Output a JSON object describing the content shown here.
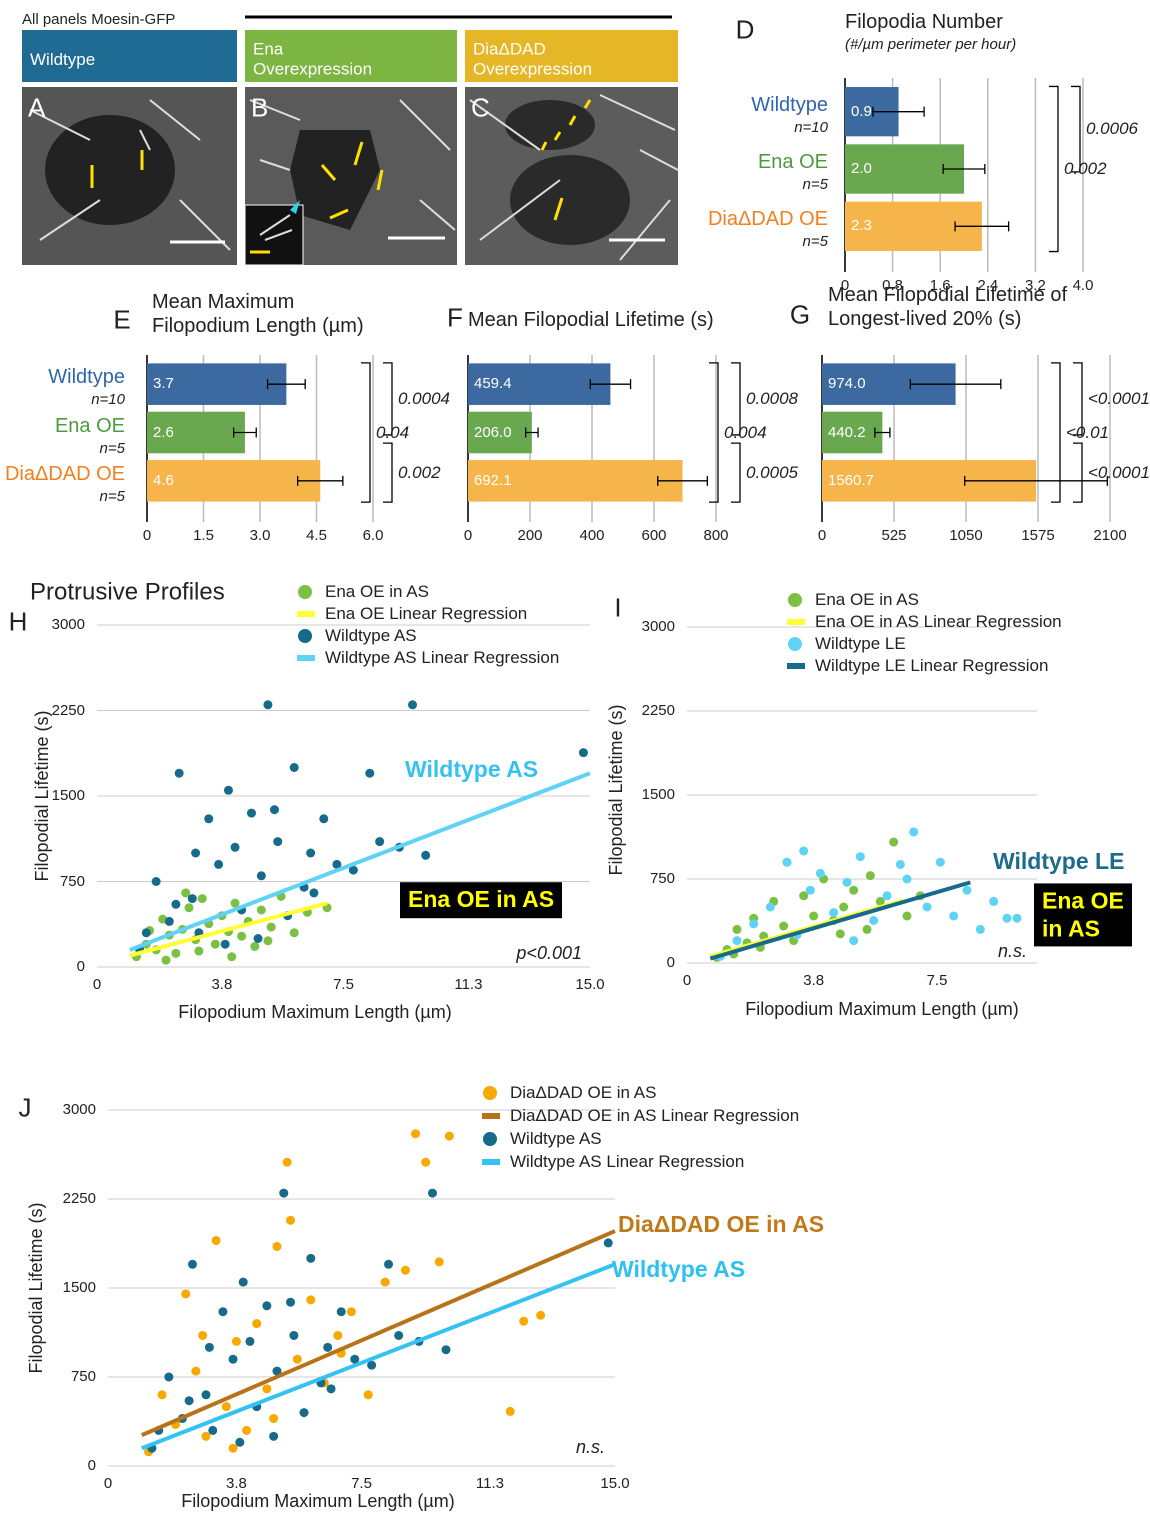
{
  "figure": {
    "heading": "All panels Moesin-GFP",
    "image_panels": [
      {
        "letter": "A",
        "title": "Wildtype",
        "color": "#1f6b93"
      },
      {
        "letter": "B",
        "title": "Ena\nOverexpression",
        "color": "#7db543"
      },
      {
        "letter": "C",
        "title": "DiaΔDAD\nOverexpression",
        "color": "#e5b625"
      }
    ]
  },
  "chart_data": [
    {
      "type": "bar",
      "letter": "D",
      "title": "Filopodia Number",
      "subtitle": "(#/µm perimeter per hour)",
      "categories": [
        "Wildtype",
        "Ena OE",
        "DiaΔDAD OE"
      ],
      "category_notes": [
        "n=10",
        "n=5",
        "n=5"
      ],
      "category_colors": [
        "#2f66ad",
        "#4f9a3c",
        "#f08020"
      ],
      "values": [
        0.9,
        2.0,
        2.3
      ],
      "value_labels": [
        "0.9",
        "2.0",
        "2.3"
      ],
      "errors": [
        0.43,
        0.35,
        0.45
      ],
      "colors": [
        "#3c6aa0",
        "#69a84f",
        "#f5b54b"
      ],
      "xlim": [
        0,
        4
      ],
      "xticks": [
        0,
        0.8,
        1.6,
        2.4,
        3.2,
        {
          "value": 4,
          "label": "4.0"
        }
      ],
      "grid": true,
      "p_values": [
        "0.0006",
        "0.002"
      ]
    },
    {
      "type": "bar",
      "letter": "E",
      "title": "Mean Maximum\nFilopodium Length (µm)",
      "categories": [
        "Wildtype",
        "Ena OE",
        "DiaΔDAD OE"
      ],
      "category_notes": [
        "n=10",
        "n=5",
        "n=5"
      ],
      "category_colors": [
        "#2f66ad",
        "#4f9a3c",
        "#f08020"
      ],
      "values": [
        3.7,
        2.6,
        4.6
      ],
      "value_labels": [
        "3.7",
        "2.6",
        "4.6"
      ],
      "errors": [
        0.5,
        0.3,
        0.6
      ],
      "colors": [
        "#3c6aa0",
        "#69a84f",
        "#f5b54b"
      ],
      "xlim": [
        0,
        6
      ],
      "xticks": [
        0,
        1.5,
        {
          "value": 3,
          "label": "3.0"
        },
        4.5,
        {
          "value": 6,
          "label": "6.0"
        }
      ],
      "grid": true,
      "p_values": [
        "0.0004",
        "0.04",
        "0.002"
      ]
    },
    {
      "type": "bar",
      "letter": "F",
      "title": "Mean Filopodial Lifetime (s)",
      "values": [
        459.4,
        206.0,
        692.1
      ],
      "value_labels": [
        "459.4",
        "206.0",
        "692.1"
      ],
      "errors": [
        65,
        20,
        80
      ],
      "colors": [
        "#3c6aa0",
        "#69a84f",
        "#f5b54b"
      ],
      "xlim": [
        0,
        800
      ],
      "xticks": [
        0,
        200,
        400,
        600,
        800
      ],
      "grid": true,
      "p_values": [
        "0.0008",
        "0.004",
        "0.0005"
      ]
    },
    {
      "type": "bar",
      "letter": "G",
      "title": "Mean Filopodial Lifetime of\nLongest-lived 20% (s)",
      "values": [
        974.0,
        440.2,
        1560.7
      ],
      "value_labels": [
        "974.0",
        "440.2",
        "1560.7"
      ],
      "errors": [
        330,
        55,
        520
      ],
      "colors": [
        "#3c6aa0",
        "#69a84f",
        "#f5b54b"
      ],
      "xlim": [
        0,
        2100
      ],
      "xticks": [
        0,
        525,
        1050,
        1575,
        2100
      ],
      "grid": true,
      "p_values": [
        "<0.0001",
        "<0.01",
        "<0.0001"
      ]
    },
    {
      "type": "scatter",
      "letter": "H",
      "title": "Protrusive Profiles",
      "x_label": "Filopodium Maximum Length (µm)",
      "y_label": "Filopodial Lifetime (s)",
      "xlim": [
        0,
        15
      ],
      "ylim": [
        0,
        3000
      ],
      "xticks": [
        0,
        3.8,
        7.5,
        11.3,
        {
          "value": 15,
          "label": "15.0"
        }
      ],
      "yticks": [
        0,
        750,
        1500,
        2250,
        3000
      ],
      "grid": true,
      "series": [
        {
          "name": "Ena OE in AS",
          "color": "#7cc043",
          "x": [
            1.2,
            1.5,
            1.8,
            2.0,
            2.2,
            2.4,
            2.6,
            2.8,
            3.0,
            3.2,
            3.4,
            3.6,
            3.8,
            4.0,
            4.2,
            4.4,
            4.6,
            4.8,
            5.0,
            5.3,
            5.6,
            6.0,
            6.4,
            7.0,
            2.1,
            3.1,
            4.1,
            5.2,
            1.6,
            2.7
          ],
          "values": [
            90,
            200,
            150,
            420,
            280,
            120,
            330,
            520,
            240,
            600,
            380,
            200,
            450,
            310,
            560,
            270,
            400,
            180,
            500,
            350,
            620,
            300,
            480,
            520,
            60,
            140,
            90,
            230,
            320,
            650
          ]
        },
        {
          "name": "Ena OE Linear Regression",
          "color": "#ffff33",
          "style": "line",
          "x": [
            1,
            7
          ],
          "values": [
            100,
            560
          ]
        },
        {
          "name": "Wildtype AS",
          "color": "#166b8c",
          "x": [
            1.3,
            1.8,
            2.2,
            2.5,
            2.9,
            3.1,
            3.4,
            3.7,
            3.9,
            4.2,
            4.4,
            4.7,
            5.0,
            5.2,
            5.5,
            5.8,
            6.0,
            6.3,
            6.5,
            6.9,
            7.3,
            7.8,
            8.3,
            8.6,
            9.2,
            9.6,
            10.0,
            14.8,
            5.4,
            3.0,
            2.4,
            4.9,
            6.6,
            1.5,
            4.0
          ],
          "values": [
            150,
            750,
            400,
            1700,
            600,
            300,
            1300,
            900,
            200,
            1050,
            500,
            1350,
            800,
            2300,
            1100,
            450,
            1750,
            700,
            1000,
            1300,
            900,
            850,
            1700,
            1100,
            1050,
            2300,
            980,
            1880,
            1380,
            1000,
            550,
            250,
            650,
            300,
            1550
          ]
        },
        {
          "name": "Wildtype AS Linear Regression",
          "color": "#5fd3f5",
          "style": "line",
          "x": [
            1,
            15
          ],
          "values": [
            150,
            1700
          ]
        }
      ],
      "annotations": [
        {
          "text": "Wildtype AS",
          "color": "#35c2f2",
          "bold": true
        },
        {
          "text": "Ena OE in AS",
          "color": "#ffff00",
          "background": "#000000",
          "bold": true
        },
        {
          "text": "p<0.001",
          "color": "#222222",
          "italic": true
        }
      ]
    },
    {
      "type": "scatter",
      "letter": "I",
      "x_label": "Filopodium Maximum Length (µm)",
      "y_label": "Filopodial Lifetime (s)",
      "xlim": [
        0,
        10.5
      ],
      "ylim": [
        0,
        3000
      ],
      "xticks": [
        0,
        3.8,
        7.5
      ],
      "yticks": [
        0,
        750,
        1500,
        2250,
        3000
      ],
      "grid": true,
      "series": [
        {
          "name": "Ena OE in AS",
          "color": "#7cc043",
          "x": [
            0.9,
            1.2,
            1.5,
            1.8,
            2.0,
            2.3,
            2.6,
            2.9,
            3.2,
            3.5,
            3.8,
            4.1,
            4.4,
            4.7,
            5.0,
            5.4,
            5.8,
            6.2,
            6.6,
            7.0,
            1.4,
            2.2,
            3.0,
            4.6,
            5.5
          ],
          "values": [
            50,
            120,
            300,
            180,
            400,
            240,
            550,
            330,
            200,
            600,
            420,
            750,
            380,
            500,
            650,
            300,
            550,
            1080,
            420,
            600,
            80,
            140,
            900,
            260,
            780
          ]
        },
        {
          "name": "Ena OE in AS Linear Regression",
          "color": "#ffff33",
          "style": "line",
          "x": [
            0.7,
            6.5
          ],
          "values": [
            60,
            560
          ]
        },
        {
          "name": "Wildtype LE",
          "color": "#5fd3f5",
          "x": [
            1.0,
            1.5,
            2.0,
            2.5,
            3.0,
            3.3,
            3.7,
            4.0,
            4.4,
            4.8,
            5.2,
            5.6,
            6.0,
            6.4,
            6.8,
            7.2,
            7.6,
            8.0,
            8.4,
            8.8,
            9.2,
            9.6,
            9.9,
            3.5,
            5.0,
            6.6
          ],
          "values": [
            60,
            200,
            350,
            500,
            900,
            250,
            650,
            800,
            450,
            720,
            950,
            380,
            600,
            880,
            1170,
            500,
            900,
            420,
            650,
            300,
            550,
            400,
            400,
            1000,
            200,
            750
          ]
        },
        {
          "name": "Wildtype LE Linear Regression",
          "color": "#166b8c",
          "style": "line",
          "x": [
            0.7,
            8.5
          ],
          "values": [
            40,
            720
          ]
        }
      ],
      "annotations": [
        {
          "text": "Wildtype LE",
          "color": "#1d6b8c",
          "bold": true
        },
        {
          "text": "Ena OE\nin AS",
          "color": "#ffff00",
          "background": "#000000",
          "bold": true
        },
        {
          "text": "n.s.",
          "color": "#222222",
          "italic": true
        }
      ]
    },
    {
      "type": "scatter",
      "letter": "J",
      "x_label": "Filopodium Maximum Length (µm)",
      "y_label": "Filopodial Lifetime (s)",
      "xlim": [
        0,
        15
      ],
      "ylim": [
        0,
        3000
      ],
      "xticks": [
        0,
        3.8,
        7.5,
        11.3,
        {
          "value": 15,
          "label": "15.0"
        }
      ],
      "yticks": [
        0,
        750,
        1500,
        2250,
        3000
      ],
      "grid": true,
      "series": [
        {
          "name": "DiaΔDAD OE in AS",
          "color": "#f7a900",
          "x": [
            1.2,
            1.6,
            2.0,
            2.3,
            2.6,
            2.9,
            3.2,
            3.5,
            3.8,
            4.1,
            4.4,
            4.7,
            5.0,
            5.3,
            5.6,
            6.0,
            6.4,
            6.8,
            7.2,
            7.7,
            8.2,
            8.8,
            9.1,
            9.4,
            9.8,
            10.1,
            12.3,
            12.8,
            11.9,
            3.7,
            2.8,
            5.4,
            4.9,
            6.9
          ],
          "values": [
            120,
            600,
            350,
            1450,
            800,
            250,
            1900,
            500,
            1050,
            300,
            1200,
            650,
            1850,
            2560,
            900,
            1400,
            700,
            1100,
            1300,
            600,
            1550,
            1650,
            2800,
            2560,
            1720,
            2780,
            1220,
            1270,
            460,
            150,
            1100,
            2070,
            400,
            950
          ]
        },
        {
          "name": "DiaΔDAD OE in AS Linear Regression",
          "color": "#b8731a",
          "style": "line",
          "x": [
            1,
            15
          ],
          "values": [
            260,
            1980
          ]
        },
        {
          "name": "Wildtype AS",
          "color": "#166b8c",
          "x": [
            1.3,
            1.8,
            2.2,
            2.5,
            2.9,
            3.1,
            3.4,
            3.7,
            3.9,
            4.2,
            4.4,
            4.7,
            5.0,
            5.2,
            5.5,
            5.8,
            6.0,
            6.3,
            6.5,
            6.9,
            7.3,
            7.8,
            8.3,
            8.6,
            9.2,
            9.6,
            10.0,
            14.8,
            5.4,
            3.0,
            2.4,
            4.9,
            6.6,
            1.5,
            4.0
          ],
          "values": [
            150,
            750,
            400,
            1700,
            600,
            300,
            1300,
            900,
            200,
            1050,
            500,
            1350,
            800,
            2300,
            1100,
            450,
            1750,
            700,
            1000,
            1300,
            900,
            850,
            1700,
            1100,
            1050,
            2300,
            980,
            1880,
            1380,
            1000,
            550,
            250,
            650,
            300,
            1550
          ]
        },
        {
          "name": "Wildtype AS Linear Regression",
          "color": "#35c2f2",
          "style": "line",
          "x": [
            1,
            15
          ],
          "values": [
            150,
            1700
          ]
        }
      ],
      "annotations": [
        {
          "text": "DiaΔDAD OE in AS",
          "color": "#c07a1a",
          "bold": true
        },
        {
          "text": "Wildtype AS",
          "color": "#2ec0f0",
          "bold": true
        },
        {
          "text": "n.s.",
          "color": "#222222",
          "italic": true
        }
      ]
    }
  ]
}
